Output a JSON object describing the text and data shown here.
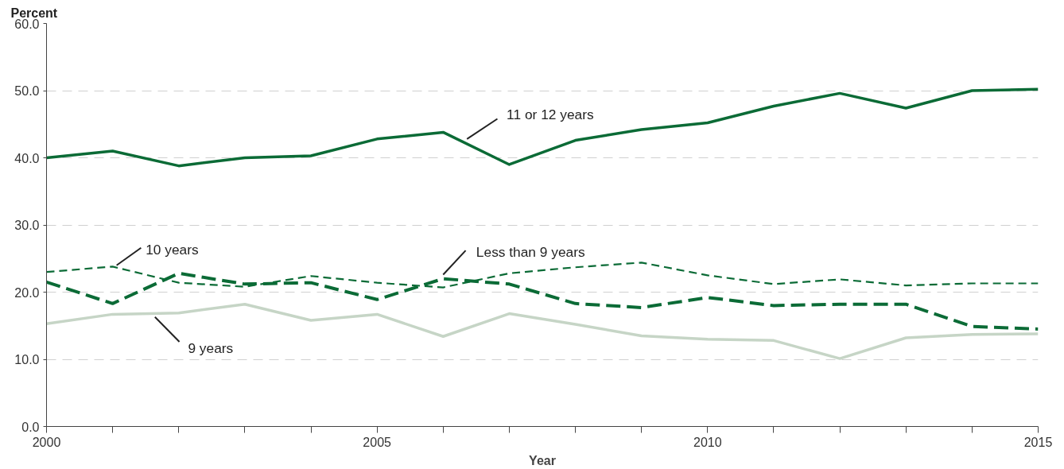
{
  "chart_data": {
    "type": "line",
    "ylabel": "Percent",
    "xlabel": "Year",
    "x": [
      2000,
      2001,
      2002,
      2003,
      2004,
      2005,
      2006,
      2007,
      2008,
      2009,
      2010,
      2011,
      2012,
      2013,
      2014,
      2015
    ],
    "xlim": [
      2000,
      2015
    ],
    "xticks": [
      2000,
      {
        "value": 2001,
        "label": null
      },
      {
        "value": 2002,
        "label": null
      },
      {
        "value": 2003,
        "label": null
      },
      {
        "value": 2004,
        "label": null
      },
      2005,
      {
        "value": 2006,
        "label": null
      },
      {
        "value": 2007,
        "label": null
      },
      {
        "value": 2008,
        "label": null
      },
      {
        "value": 2009,
        "label": null
      },
      2010,
      {
        "value": 2011,
        "label": null
      },
      {
        "value": 2012,
        "label": null
      },
      {
        "value": 2013,
        "label": null
      },
      {
        "value": 2014,
        "label": null
      },
      2015
    ],
    "ylim": [
      0,
      60
    ],
    "yticks": [
      {
        "value": 0,
        "label": "0.0"
      },
      {
        "value": 10,
        "label": "10.0"
      },
      {
        "value": 20,
        "label": "20.0"
      },
      {
        "value": 30,
        "label": "30.0"
      },
      {
        "value": 40,
        "label": "40.0"
      },
      {
        "value": 50,
        "label": "50.0"
      },
      {
        "value": 60,
        "label": "60.0"
      }
    ],
    "grid": "y",
    "marker": "none",
    "series": [
      {
        "name": "11 or 12 years",
        "color": "#0b6b36",
        "line_style": "solid",
        "values": [
          40.0,
          41.0,
          38.8,
          40.0,
          40.3,
          42.8,
          43.8,
          39.0,
          42.6,
          44.2,
          45.2,
          47.7,
          49.6,
          47.4,
          50.0,
          50.2
        ]
      },
      {
        "name": "10 years",
        "color": "#0b6b36",
        "line_style": "dashed",
        "values": [
          23.0,
          23.8,
          21.4,
          20.8,
          22.4,
          21.4,
          20.7,
          22.8,
          23.7,
          24.4,
          22.5,
          21.2,
          21.9,
          21.0,
          21.3,
          21.3
        ]
      },
      {
        "name": "Less than 9 years",
        "color": "#0b6b36",
        "line_style": "dashed",
        "values": [
          21.5,
          18.3,
          22.8,
          21.2,
          21.4,
          18.9,
          22.0,
          21.2,
          18.3,
          17.7,
          19.2,
          18.0,
          18.2,
          18.2,
          14.9,
          14.5
        ]
      },
      {
        "name": "9 years",
        "color": "#c6d5c6",
        "line_style": "solid",
        "values": [
          15.3,
          16.7,
          16.9,
          18.2,
          15.8,
          16.7,
          13.4,
          16.8,
          15.2,
          13.5,
          13.0,
          12.8,
          10.1,
          13.2,
          13.7,
          13.8
        ]
      }
    ]
  }
}
